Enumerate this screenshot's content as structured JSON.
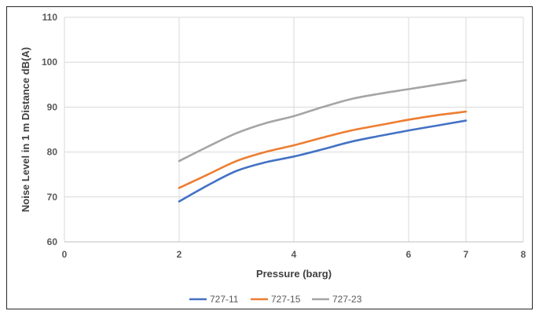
{
  "chart_data": {
    "type": "line",
    "title": "",
    "xlabel": "Pressure (barg)",
    "ylabel": "Noise Level in 1 m Distance  dB(A)",
    "xlim": [
      0,
      8
    ],
    "ylim": [
      60,
      110
    ],
    "x_ticks": [
      0,
      2,
      4,
      6,
      7,
      8
    ],
    "y_ticks": [
      60,
      70,
      80,
      90,
      100,
      110
    ],
    "grid": true,
    "legend_position": "bottom",
    "series": [
      {
        "name": "727-11",
        "color": "#4472C4",
        "points": [
          [
            2,
            69
          ],
          [
            2.5,
            72.6
          ],
          [
            3,
            75.8
          ],
          [
            3.5,
            77.7
          ],
          [
            4,
            79
          ],
          [
            4.5,
            80.6
          ],
          [
            5,
            82.3
          ],
          [
            5.5,
            83.6
          ],
          [
            6,
            84.8
          ],
          [
            6.5,
            85.9
          ],
          [
            7,
            87
          ]
        ]
      },
      {
        "name": "727-15",
        "color": "#ED7D31",
        "points": [
          [
            2,
            72
          ],
          [
            2.5,
            75
          ],
          [
            3,
            78
          ],
          [
            3.5,
            80
          ],
          [
            4,
            81.5
          ],
          [
            4.5,
            83.2
          ],
          [
            5,
            84.8
          ],
          [
            5.5,
            86
          ],
          [
            6,
            87.2
          ],
          [
            6.5,
            88.2
          ],
          [
            7,
            89
          ]
        ]
      },
      {
        "name": "727-23",
        "color": "#A5A5A5",
        "points": [
          [
            2,
            78
          ],
          [
            2.5,
            81.2
          ],
          [
            3,
            84.2
          ],
          [
            3.5,
            86.4
          ],
          [
            4,
            88
          ],
          [
            4.5,
            90
          ],
          [
            5,
            91.8
          ],
          [
            5.5,
            93
          ],
          [
            6,
            94
          ],
          [
            6.5,
            95
          ],
          [
            7,
            96
          ]
        ]
      }
    ]
  }
}
